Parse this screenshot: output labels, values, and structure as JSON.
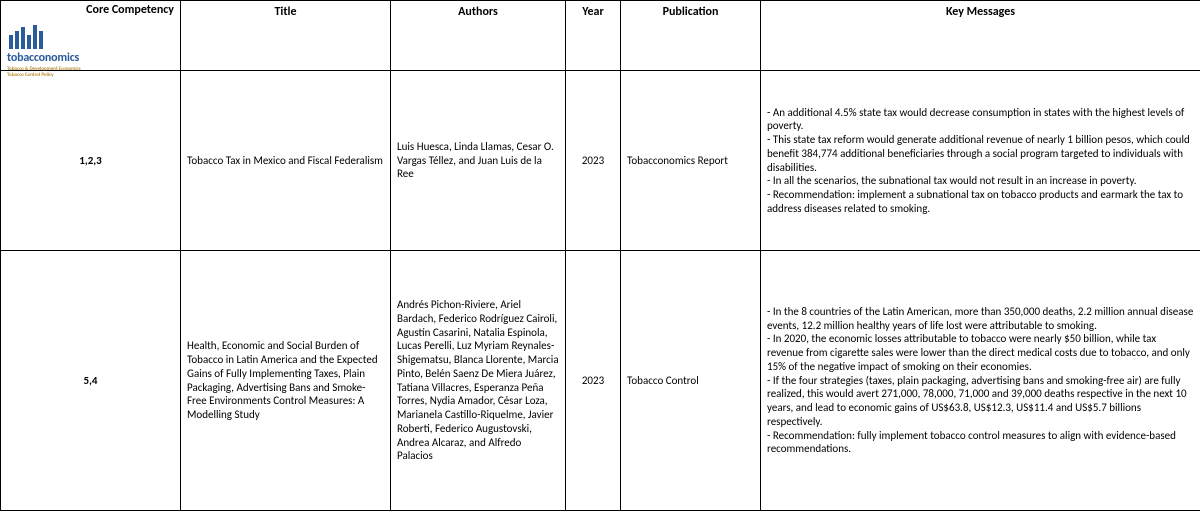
{
  "columns": {
    "core_competency": "Core Competency",
    "title": "Title",
    "authors": "Authors",
    "year": "Year",
    "publication": "Publication",
    "key_messages": "Key Messages"
  },
  "logo": {
    "name": "tobacconomics",
    "subline1": "Tobacco & Development Economics",
    "subline2": "Tobacco Control Policy"
  },
  "rows": [
    {
      "core_competency": "1,2,3",
      "title": "Tobacco Tax in Mexico and Fiscal Federalism",
      "authors": "Luis Huesca, Linda Llamas, Cesar O. Vargas Téllez, and Juan Luis de la Ree",
      "year": "2023",
      "publication": "Tobacconomics Report",
      "key_messages": "- An additional 4.5% state tax would decrease consumption in states with the highest levels of poverty.\n- This state tax reform would generate additional revenue of nearly 1 billion pesos, which could benefit 384,774 additional beneficiaries through a social program targeted to individuals with disabilities.\n- In all the scenarios, the subnational tax would not result in an increase in poverty.\n- Recommendation: implement a subnational tax on tobacco products and earmark the tax to address diseases related to smoking."
    },
    {
      "core_competency": "5,4",
      "title": "Health, Economic and Social Burden of Tobacco in Latin America and the Expected Gains of Fully Implementing Taxes, Plain Packaging, Advertising Bans and Smoke-Free Environments Control Measures: A Modelling Study",
      "authors": "Andrés Pichon-Riviere, Ariel Bardach, Federico Rodríguez Cairoli, Agustín Casarini, Natalia Espinola, Lucas Perelli, Luz Myriam Reynales-Shigematsu, Blanca Llorente, Marcia Pinto, Belén Saenz De Miera Juárez, Tatiana Villacres, Esperanza Peña Torres, Nydia Amador, César Loza, Marianela Castillo-Riquelme, Javier Roberti, Federico Augustovski, Andrea Alcaraz, and Alfredo Palacios",
      "year": "2023",
      "publication": "Tobacco Control",
      "key_messages": "- In the 8 countries of the Latin American, more than 350,000 deaths, 2.2 million annual disease events, 12.2 million healthy years of life lost were attributable to smoking.\n- In 2020, the economic losses attributable to tobacco were nearly $50 billion, while tax revenue from cigarette sales were lower than the direct medical costs due to tobacco, and only 15% of the negative impact of smoking on their economies.\n- If the four strategies (taxes, plain packaging, advertising bans and smoking-free air) are fully realized, this would avert  271,000, 78,000, 71,000 and 39,000 deaths respective in the next 10 years, and lead to economic gains of US$63.8, US$12.3, US$11.4 and US$5.7 billions respectively.\n- Recommendation: fully implement tobacco control measures to align with evidence-based recommendations."
    }
  ]
}
